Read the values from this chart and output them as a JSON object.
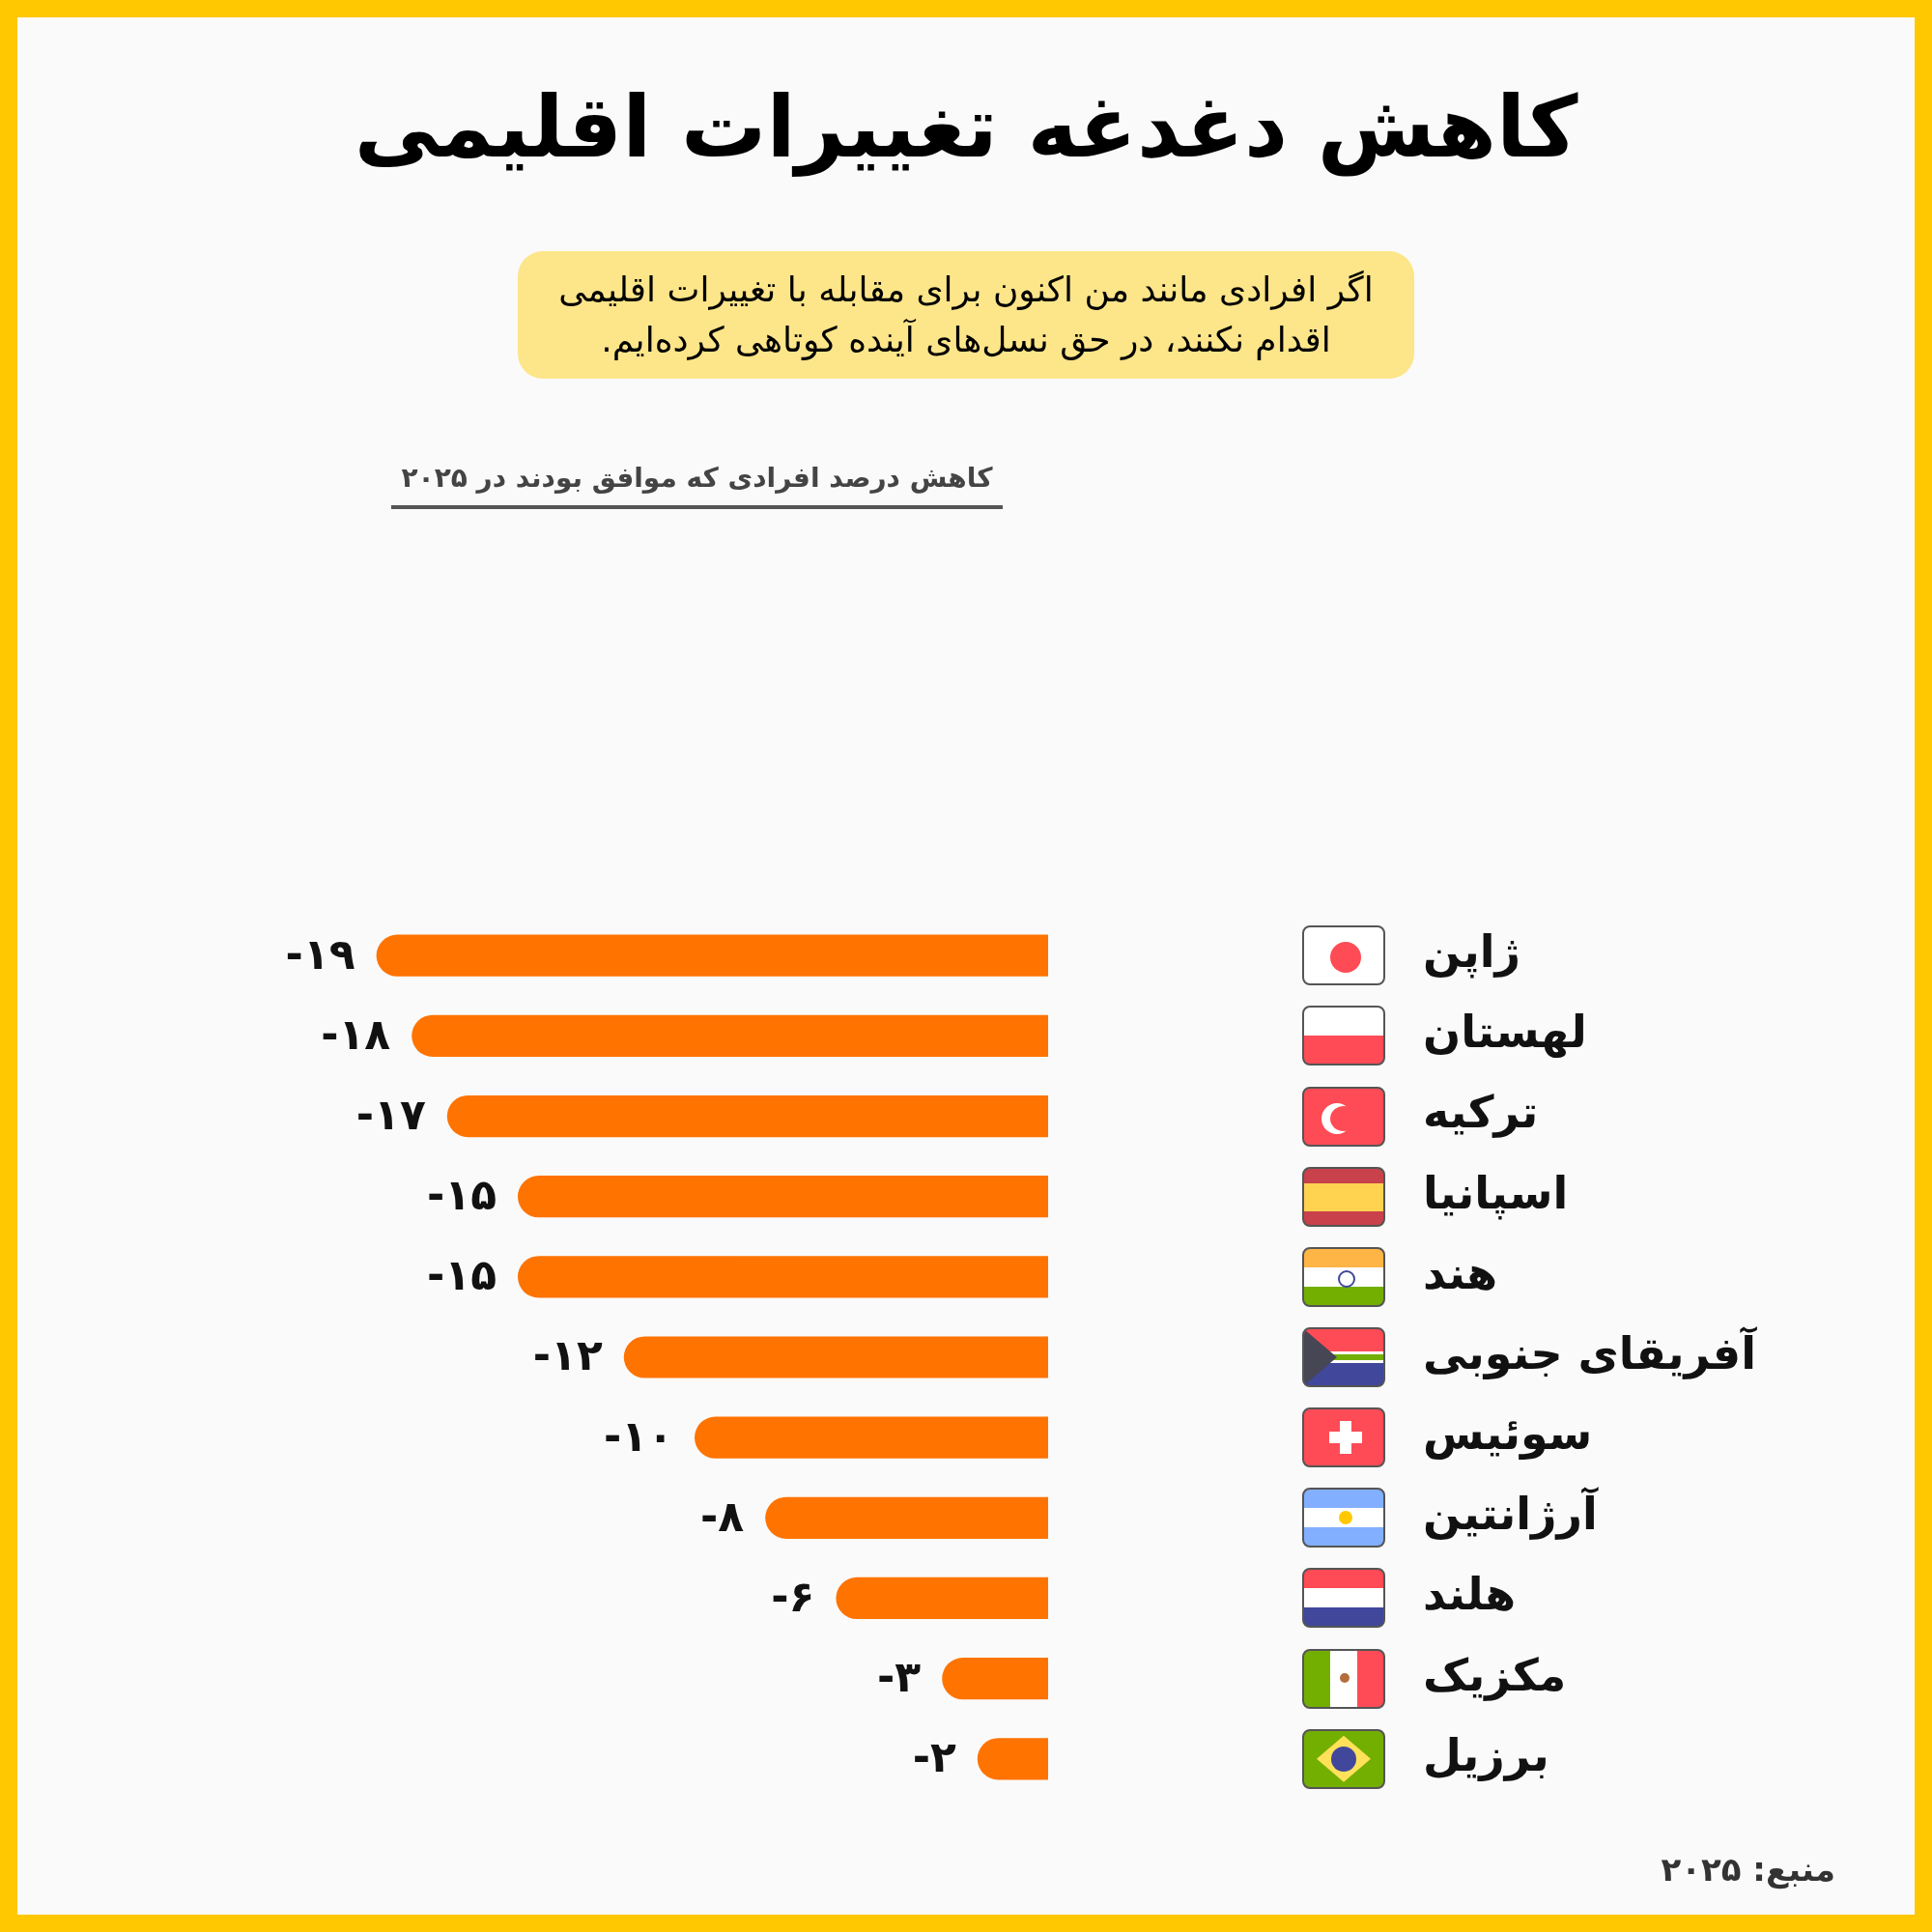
{
  "chart_data": {
    "type": "bar",
    "orientation": "horizontal",
    "title": "کاهش دغدغه تغییرات اقلیمی",
    "subtitle": "اگر افرادی مانند من اکنون برای مقابله با تغییرات اقلیمی اقدام نکنند، در حق نسل‌های آینده کوتاهی کرده‌ایم.",
    "categories": [
      "ژاپن",
      "لهستان",
      "ترکیه",
      "اسپانیا",
      "هند",
      "آفریقای جنوبی",
      "سوئیس",
      "آرژانتین",
      "هلند",
      "مکزیک",
      "برزیل"
    ],
    "values": [
      -19,
      -18,
      -17,
      -15,
      -15,
      -12,
      -10,
      -8,
      -6,
      -3,
      -2
    ],
    "value_labels": [
      "-۱۹",
      "-۱۸",
      "-۱۷",
      "-۱۵",
      "-۱۵",
      "-۱۲",
      "-۱۰",
      "-۸",
      "-۶",
      "-۳",
      "-۲"
    ],
    "color": "#ff7300",
    "tick_labels": "y",
    "annotations": [
      "کاهش درصد افرادی که موافق بودند در ۲۰۲۵",
      "منبع: ۲۰۲۵"
    ]
  }
}
